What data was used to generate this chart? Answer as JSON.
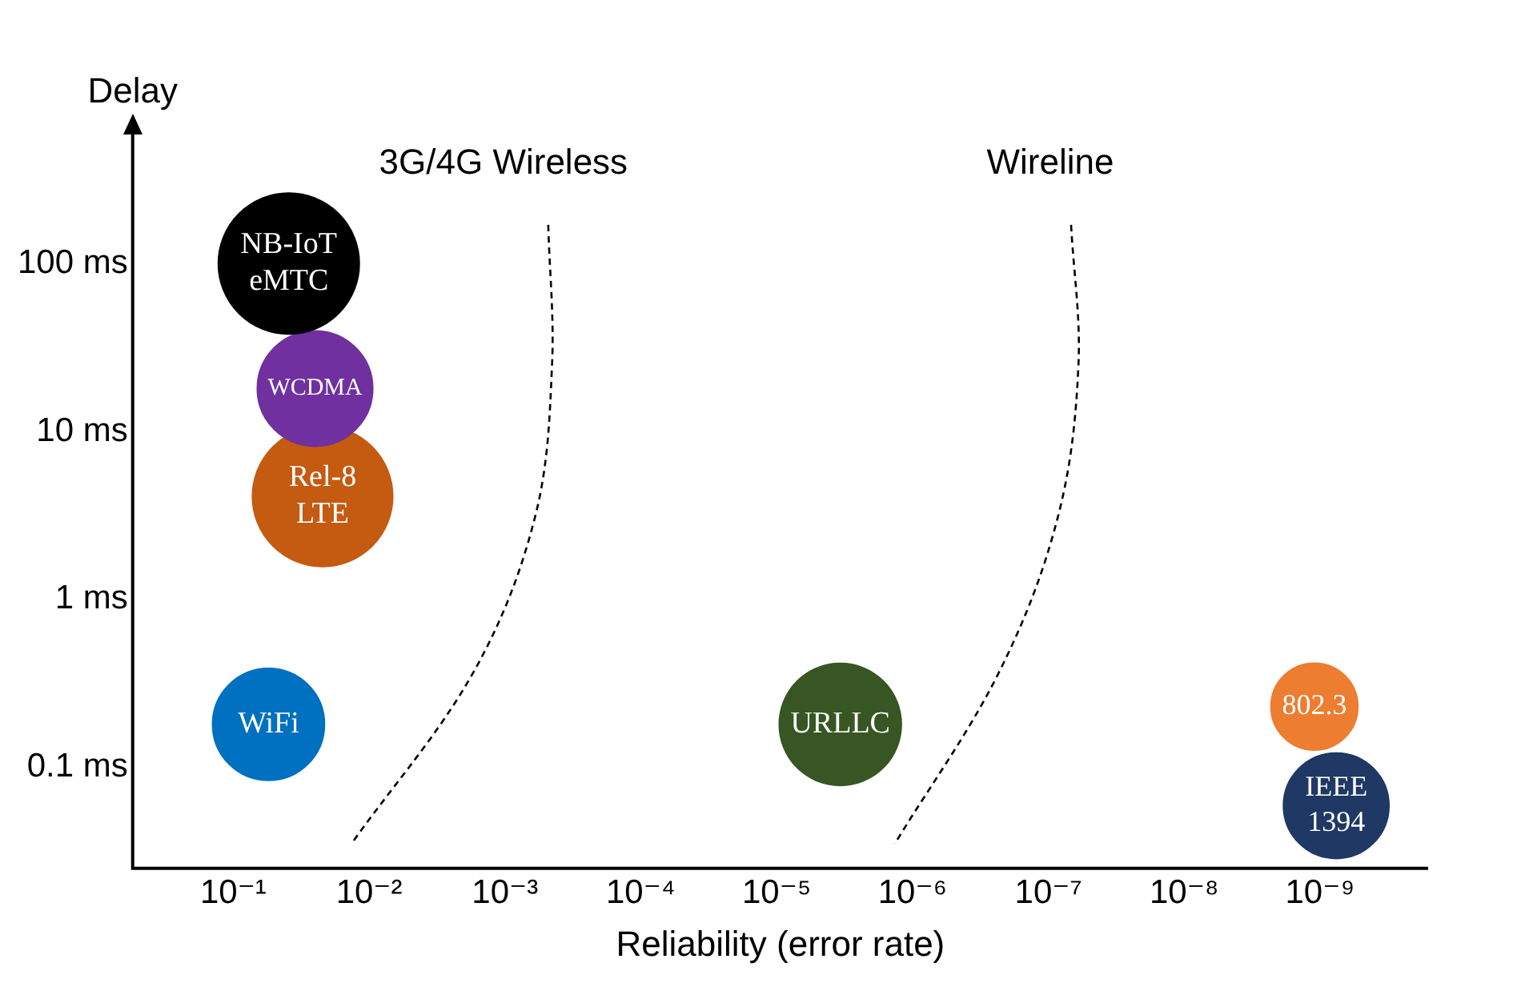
{
  "chart_data": {
    "type": "bubble",
    "xlabel": "Reliability (error rate)",
    "ylabel": "Delay",
    "log": "xy",
    "grid": false,
    "xlim": [
      0.55,
      1.6e-10
    ],
    "xticks": [
      {
        "value": 0.1,
        "label": "10⁻¹"
      },
      {
        "value": 0.01,
        "label": "10⁻²"
      },
      {
        "value": 0.001,
        "label": "10⁻³"
      },
      {
        "value": 0.0001,
        "label": "10⁻⁴"
      },
      {
        "value": 1e-05,
        "label": "10⁻⁵"
      },
      {
        "value": 1e-06,
        "label": "10⁻⁶"
      },
      {
        "value": 1e-07,
        "label": "10⁻⁷"
      },
      {
        "value": 1e-08,
        "label": "10⁻⁸"
      },
      {
        "value": 1e-09,
        "label": "10⁻⁹"
      }
    ],
    "ylim": [
      0.025,
      600
    ],
    "yticks": [
      {
        "value": 0.1,
        "label": "0.1 ms"
      },
      {
        "value": 1,
        "label": "1 ms"
      },
      {
        "value": 10,
        "label": "10 ms"
      },
      {
        "value": 100,
        "label": "100 ms"
      }
    ],
    "series": [
      {
        "name": "NB-IoT eMTC",
        "color": "#000000",
        "x": [
          0.039
        ],
        "values": [
          100
        ],
        "sizes": [
          1
        ]
      },
      {
        "name": "WCDMA",
        "color": "#7030a0",
        "x": [
          0.025
        ],
        "values": [
          18
        ],
        "sizes": [
          0.67
        ]
      },
      {
        "name": "Rel-8 LTE",
        "color": "#c55a11",
        "x": [
          0.022
        ],
        "values": [
          4.1
        ],
        "sizes": [
          0.99
        ]
      },
      {
        "name": "WiFi",
        "color": "#0070c0",
        "x": [
          0.055
        ],
        "values": [
          0.18
        ],
        "sizes": [
          0.63
        ]
      },
      {
        "name": "URLLC",
        "color": "#375623",
        "x": [
          3.4e-06
        ],
        "values": [
          0.18
        ],
        "sizes": [
          0.75
        ]
      },
      {
        "name": "802.3",
        "color": "#ed7d31",
        "x": [
          1.1e-09
        ],
        "values": [
          0.23
        ],
        "sizes": [
          0.38
        ]
      },
      {
        "name": "IEEE 1394",
        "color": "#1f3864",
        "x": [
          7.6e-10
        ],
        "values": [
          0.059
        ],
        "sizes": [
          0.56
        ]
      },
      {
        "type": "line",
        "color": "#000000",
        "line_style": "dashed",
        "marker": "none",
        "x": [
          0.00048,
          0.00045,
          0.0006,
          0.0017,
          0.0135
        ],
        "values": [
          170,
          25,
          3.1,
          0.37,
          0.035
        ]
      },
      {
        "type": "line",
        "color": "#000000",
        "line_style": "dashed",
        "marker": "none",
        "x": [
          6.8e-08,
          6e-08,
          8.5e-08,
          2.3e-07,
          1.35e-06
        ],
        "values": [
          170,
          25,
          3.1,
          0.37,
          0.035
        ]
      }
    ],
    "annotations": [
      "3G/4G Wireless",
      "Wireline"
    ]
  }
}
